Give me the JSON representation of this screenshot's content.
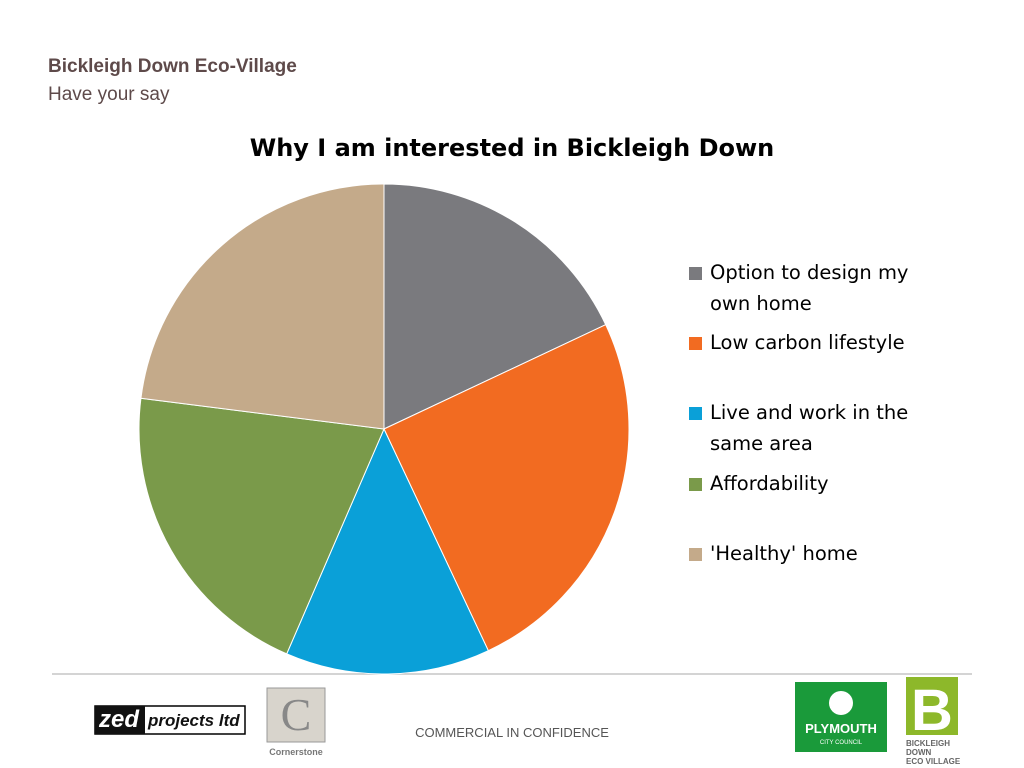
{
  "header": {
    "title": "Bickleigh Down Eco-Village",
    "subtitle": "Have your say"
  },
  "chart_data": {
    "type": "pie",
    "title": "Why I am interested in Bickleigh Down",
    "categories": [
      "Option to design my own home",
      "Low carbon lifestyle",
      "Live and work in the same area",
      "Affordability",
      " 'Healthy' home"
    ],
    "values": [
      18,
      25,
      13.5,
      20.5,
      23
    ],
    "colors": [
      "#7a7a7e",
      "#f26b21",
      "#0aa0d8",
      "#7a9a4a",
      "#c4aa8a"
    ],
    "legend": "right"
  },
  "footer": {
    "confidential": "COMMERCIAL IN CONFIDENCE",
    "logos": {
      "zed": "zed",
      "zed_rest": "projects ltd",
      "cornerstone_mark": "C",
      "cornerstone": "Cornerstone",
      "plymouth": "PLYMOUTH",
      "plymouth_sub": "CITY COUNCIL",
      "bickleigh_mark": "B",
      "bickleigh": [
        "BICKLEIGH",
        "DOWN",
        "ECO VILLAGE"
      ]
    }
  }
}
